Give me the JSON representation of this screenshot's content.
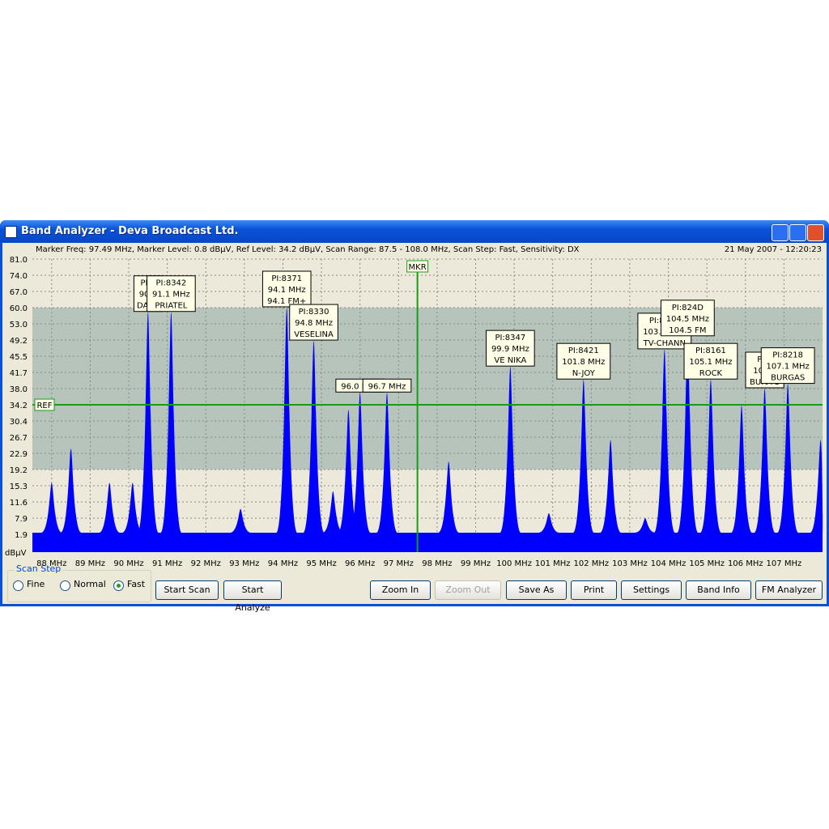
{
  "window": {
    "title": "Band Analyzer - Deva Broadcast Ltd."
  },
  "status": {
    "info": "Marker Freq: 97.49 MHz, Marker Level: 0.8 dBµV, Ref Level: 34.2 dBµV, Scan Range: 87.5 - 108.0 MHz, Scan Step: Fast, Sensitivity: DX",
    "datetime": "21 May 2007 - 12:20:23"
  },
  "chart_data": {
    "type": "spectrum",
    "color": "#0000ff",
    "grid": true,
    "xlim": [
      87.5,
      108.0
    ],
    "xticks": [
      {
        "value": 88,
        "label": "88 MHz"
      },
      {
        "value": 89,
        "label": "89 MHz"
      },
      {
        "value": 90,
        "label": "90 MHz"
      },
      {
        "value": 91,
        "label": "91 MHz"
      },
      {
        "value": 92,
        "label": "92 MHz"
      },
      {
        "value": 93,
        "label": "93 MHz"
      },
      {
        "value": 94,
        "label": "94 MHz"
      },
      {
        "value": 95,
        "label": "95 MHz"
      },
      {
        "value": 96,
        "label": "96 MHz"
      },
      {
        "value": 97,
        "label": "97 MHz"
      },
      {
        "value": 98,
        "label": "98 MHz"
      },
      {
        "value": 99,
        "label": "99 MHz"
      },
      {
        "value": 100,
        "label": "100 MHz"
      },
      {
        "value": 101,
        "label": "101 MHz"
      },
      {
        "value": 102,
        "label": "102 MHz"
      },
      {
        "value": 103,
        "label": "103 MHz"
      },
      {
        "value": 104,
        "label": "104 MHz"
      },
      {
        "value": 105,
        "label": "105 MHz"
      },
      {
        "value": 106,
        "label": "106 MHz"
      },
      {
        "value": 107,
        "label": "107 MHz"
      }
    ],
    "ylim": [
      0,
      81
    ],
    "yticks": [
      {
        "value": 81,
        "label": "81.0"
      },
      {
        "value": 74,
        "label": "74.0"
      },
      {
        "value": 67,
        "label": "67.0"
      },
      {
        "value": 60,
        "label": "60.0"
      },
      {
        "value": 53,
        "label": "53.0"
      },
      49.2,
      45.5,
      41.7,
      {
        "value": 38,
        "label": "38.0"
      },
      34.2,
      30.4,
      26.7,
      22.9,
      19.2,
      15.3,
      11.6,
      7.9,
      1.9
    ],
    "y_unit": "dBµV",
    "band": [
      19.2,
      60.0
    ],
    "ref_level": 34.2,
    "ref_label": "REF",
    "marker_freq": 97.49,
    "marker_label": "MKR",
    "noise_floor": 2.5,
    "peaks": [
      {
        "freq": 88.0,
        "level": 16
      },
      {
        "freq": 88.5,
        "level": 24
      },
      {
        "freq": 89.5,
        "level": 16
      },
      {
        "freq": 90.1,
        "level": 16
      },
      {
        "freq": 90.5,
        "level": 58,
        "label": [
          "PI:8",
          "90.5",
          "DARS"
        ]
      },
      {
        "freq": 91.1,
        "level": 58,
        "label": [
          "PI:8342",
          "91.1 MHz",
          "PRIATEL"
        ]
      },
      {
        "freq": 92.9,
        "level": 10
      },
      {
        "freq": 94.1,
        "level": 60,
        "label": [
          "PI:8371",
          "94.1 MHz",
          "94.1 FM+"
        ]
      },
      {
        "freq": 94.8,
        "level": 49,
        "label": [
          "PI:8330",
          "94.8 MHz",
          "VESELINA"
        ]
      },
      {
        "freq": 95.3,
        "level": 14
      },
      {
        "freq": 95.7,
        "level": 33
      },
      {
        "freq": 96.0,
        "level": 37,
        "label": [
          "96.0 MHz"
        ]
      },
      {
        "freq": 96.7,
        "level": 37,
        "label": [
          "96.7 MHz"
        ]
      },
      {
        "freq": 98.3,
        "level": 21
      },
      {
        "freq": 99.9,
        "level": 43,
        "label": [
          "PI:8347",
          "99.9 MHz",
          "VE  NIKA"
        ]
      },
      {
        "freq": 100.9,
        "level": 9
      },
      {
        "freq": 101.8,
        "level": 40,
        "label": [
          "PI:8421",
          "101.8 MHz",
          "N-JOY"
        ]
      },
      {
        "freq": 102.5,
        "level": 26
      },
      {
        "freq": 103.4,
        "level": 7.9
      },
      {
        "freq": 103.9,
        "level": 47,
        "label": [
          "PI:8032",
          "103.9 MHz",
          "TV-CHANN"
        ]
      },
      {
        "freq": 104.5,
        "level": 50,
        "label": [
          "PI:824D",
          "104.5 MHz",
          "104.5 FM"
        ]
      },
      {
        "freq": 105.1,
        "level": 40,
        "label": [
          "PI:8161",
          "105.1 MHz",
          "ROCK"
        ]
      },
      {
        "freq": 105.9,
        "level": 34
      },
      {
        "freq": 106.5,
        "level": 38,
        "label": [
          "PI:8",
          "106.5",
          "BURA S"
        ]
      },
      {
        "freq": 107.1,
        "level": 39,
        "label": [
          "PI:8218",
          "107.1 MHz",
          "BURGAS"
        ]
      },
      {
        "freq": 107.95,
        "level": 26
      }
    ]
  },
  "controls": {
    "scan_step": {
      "title": "Scan Step",
      "options": [
        "Fine",
        "Normal",
        "Fast"
      ],
      "selected": 2
    },
    "buttons": [
      {
        "label": "Start Scan",
        "enabled": true
      },
      {
        "label": "Start Analyze",
        "enabled": true
      },
      {
        "label": "Zoom In",
        "enabled": true
      },
      {
        "label": "Zoom Out",
        "enabled": false
      },
      {
        "label": "Save As",
        "enabled": true
      },
      {
        "label": "Print",
        "enabled": true
      },
      {
        "label": "Settings",
        "enabled": true
      },
      {
        "label": "Band Info",
        "enabled": true
      },
      {
        "label": "FM Analyzer",
        "enabled": true
      }
    ]
  }
}
